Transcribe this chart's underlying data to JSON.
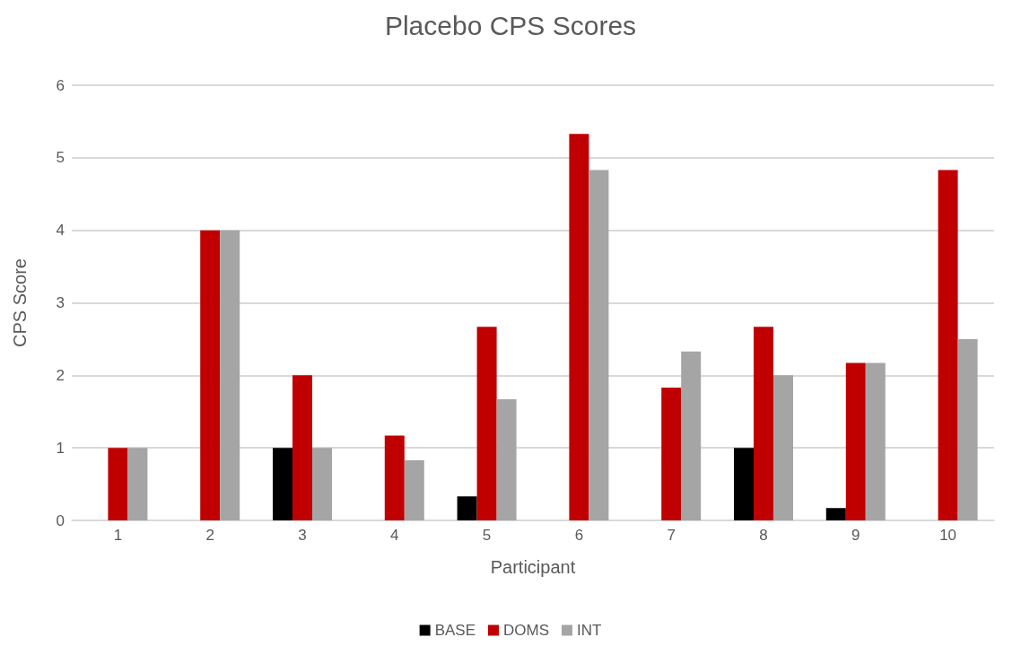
{
  "chart_data": {
    "type": "bar",
    "title": "Placebo CPS Scores",
    "xlabel": "Participant",
    "ylabel": "CPS Score",
    "categories": [
      "1",
      "2",
      "3",
      "4",
      "5",
      "6",
      "7",
      "8",
      "9",
      "10"
    ],
    "series": [
      {
        "name": "BASE",
        "color": "#000000",
        "values": [
          0,
          0,
          1,
          0,
          0.33,
          0,
          0,
          1,
          0.17,
          0
        ]
      },
      {
        "name": "DOMS",
        "color": "#c00000",
        "values": [
          1,
          4,
          2,
          1.17,
          2.67,
          5.33,
          1.83,
          2.67,
          2.17,
          4.83
        ]
      },
      {
        "name": "INT",
        "color": "#a5a5a5",
        "values": [
          1,
          4,
          1,
          0.83,
          1.67,
          4.83,
          2.33,
          2,
          2.17,
          2.5
        ]
      }
    ],
    "ylim": [
      0,
      6
    ],
    "yticks": [
      0,
      1,
      2,
      3,
      4,
      5,
      6
    ],
    "grid": "y",
    "legend": "bottom"
  }
}
